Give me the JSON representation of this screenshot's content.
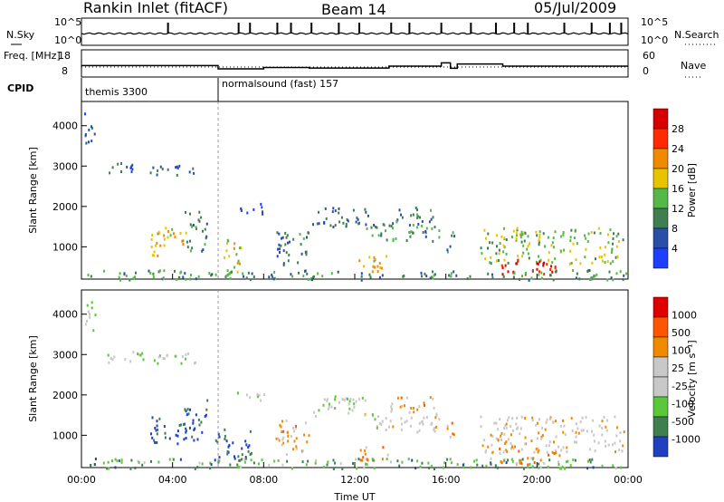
{
  "header": {
    "title": "Rankin Inlet (fitACF)",
    "beam": "Beam 14",
    "date": "05/Jul/2009"
  },
  "chart_data": [
    {
      "type": "line",
      "title": "",
      "left_label": "N.Sky",
      "right_label": "N.Search",
      "yticks_left": [
        "10^5",
        "10^0"
      ],
      "yticks_right": [
        "10^5",
        "10^0"
      ],
      "description_values": {
        "baseline_log_noise": 0.4,
        "spike_hours": [
          3.8,
          6.9,
          7.4,
          8.6,
          9.2,
          10.1,
          11.3,
          12.2,
          13.6,
          14.4,
          15.8,
          17.1,
          18.2,
          19.0,
          19.6,
          21.2,
          22.4,
          23.2,
          23.7
        ]
      }
    },
    {
      "type": "line",
      "left_label": "Freq. [MHz]",
      "right_label": "Nave",
      "yticks_left": [
        "18",
        "8"
      ],
      "yticks_right": [
        "60",
        "0"
      ],
      "freq_steps": [
        {
          "start": 0,
          "end": 6,
          "value": 12.2
        },
        {
          "start": 6,
          "end": 8,
          "value": 11.0
        },
        {
          "start": 8,
          "end": 10,
          "value": 11.5
        },
        {
          "start": 10,
          "end": 13.5,
          "value": 11.3
        },
        {
          "start": 13.5,
          "end": 15.8,
          "value": 12.0
        },
        {
          "start": 15.8,
          "end": 16.2,
          "value": 13.2
        },
        {
          "start": 16.2,
          "end": 16.5,
          "value": 11.2
        },
        {
          "start": 16.5,
          "end": 18.5,
          "value": 12.8
        },
        {
          "start": 18.5,
          "end": 24,
          "value": 12.0
        }
      ],
      "nave_value": 22
    },
    {
      "type": "table",
      "label": "CPID",
      "segments": [
        {
          "start_hour": 0,
          "text": "themis 3300"
        },
        {
          "start_hour": 6,
          "text": "normalsound (fast) 157"
        }
      ]
    },
    {
      "type": "heatmap",
      "ylabel": "Slant Range [km]",
      "yticks": [
        1000,
        2000,
        3000,
        4000
      ],
      "ylim": [
        200,
        4600
      ],
      "colorbar_label": "Power [dB]",
      "colorbar_ticks": [
        "28",
        "24",
        "20",
        "16",
        "12",
        "8",
        "4"
      ],
      "colors": [
        "#1f3fff",
        "#2a4fa8",
        "#3f7f4f",
        "#55b84a",
        "#e8c400",
        "#f08a00",
        "#ff2a00",
        "#d60000"
      ],
      "regions": [
        {
          "t0": 0.1,
          "t1": 0.6,
          "r0": 3600,
          "r1": 4400,
          "level": 0.15
        },
        {
          "t0": 1.0,
          "t1": 2.5,
          "r0": 2800,
          "r1": 3100,
          "level": 0.2
        },
        {
          "t0": 3.0,
          "t1": 5.0,
          "r0": 2800,
          "r1": 3100,
          "level": 0.25
        },
        {
          "t0": 3.0,
          "t1": 4.6,
          "r0": 800,
          "r1": 1500,
          "level": 0.6
        },
        {
          "t0": 4.5,
          "t1": 5.5,
          "r0": 900,
          "r1": 1900,
          "level": 0.3
        },
        {
          "t0": 6.2,
          "t1": 7.0,
          "r0": 400,
          "r1": 1200,
          "level": 0.55
        },
        {
          "t0": 6.8,
          "t1": 8.0,
          "r0": 1800,
          "r1": 2100,
          "level": 0.2
        },
        {
          "t0": 8.5,
          "t1": 10.0,
          "r0": 500,
          "r1": 1400,
          "level": 0.25
        },
        {
          "t0": 10.0,
          "t1": 12.6,
          "r0": 1500,
          "r1": 2000,
          "level": 0.22
        },
        {
          "t0": 12.0,
          "t1": 13.5,
          "r0": 400,
          "r1": 800,
          "level": 0.6
        },
        {
          "t0": 12.3,
          "t1": 15.7,
          "r0": 1100,
          "r1": 1600,
          "level": 0.35
        },
        {
          "t0": 13.5,
          "t1": 15.5,
          "r0": 1600,
          "r1": 2000,
          "level": 0.3
        },
        {
          "t0": 16.0,
          "t1": 16.4,
          "r0": 900,
          "r1": 1500,
          "level": 0.3
        },
        {
          "t0": 17.5,
          "t1": 23.8,
          "r0": 600,
          "r1": 1500,
          "level": 0.45
        },
        {
          "t0": 18.2,
          "t1": 21.0,
          "r0": 300,
          "r1": 700,
          "level": 0.9
        },
        {
          "t0": 0.0,
          "t1": 24.0,
          "r0": 200,
          "r1": 450,
          "level": 0.35
        }
      ]
    },
    {
      "type": "heatmap",
      "ylabel": "Slant Range [km]",
      "yticks": [
        1000,
        2000,
        3000,
        4000
      ],
      "ylim": [
        200,
        4600
      ],
      "xticks": [
        "00:00",
        "04:00",
        "08:00",
        "12:00",
        "16:00",
        "20:00",
        "00:00"
      ],
      "xlabel": "Time UT",
      "colorbar_label": "Velocity [m s⁻¹]",
      "colorbar_ticks": [
        "1000",
        "500",
        "100",
        "25",
        "-25",
        "-100",
        "-500",
        "-1000"
      ],
      "colors": [
        "#2040c0",
        "#3f7f4f",
        "#5ac83a",
        "#c8c8c8",
        "#c8c8c8",
        "#f08a00",
        "#ff5500",
        "#e00000"
      ],
      "regions": [
        {
          "t0": 0.1,
          "t1": 0.6,
          "r0": 3600,
          "r1": 4400,
          "level": 0.4
        },
        {
          "t0": 1.0,
          "t1": 5.0,
          "r0": 2800,
          "r1": 3100,
          "level": 0.42
        },
        {
          "t0": 3.0,
          "t1": 4.6,
          "r0": 800,
          "r1": 1500,
          "level": 0.05
        },
        {
          "t0": 4.5,
          "t1": 5.5,
          "r0": 900,
          "r1": 1900,
          "level": 0.08
        },
        {
          "t0": 5.8,
          "t1": 7.5,
          "r0": 400,
          "r1": 1200,
          "level": 0.1
        },
        {
          "t0": 6.8,
          "t1": 8.0,
          "r0": 1800,
          "r1": 2100,
          "level": 0.45
        },
        {
          "t0": 8.5,
          "t1": 10.0,
          "r0": 500,
          "r1": 1400,
          "level": 0.62
        },
        {
          "t0": 10.0,
          "t1": 12.6,
          "r0": 1500,
          "r1": 2000,
          "level": 0.45
        },
        {
          "t0": 12.0,
          "t1": 13.5,
          "r0": 400,
          "r1": 800,
          "level": 0.65
        },
        {
          "t0": 12.3,
          "t1": 15.7,
          "r0": 1100,
          "r1": 1600,
          "level": 0.5
        },
        {
          "t0": 13.5,
          "t1": 15.5,
          "r0": 1600,
          "r1": 2000,
          "level": 0.62
        },
        {
          "t0": 16.0,
          "t1": 16.4,
          "r0": 900,
          "r1": 1500,
          "level": 0.64
        },
        {
          "t0": 17.5,
          "t1": 23.8,
          "r0": 600,
          "r1": 1500,
          "level": 0.55
        },
        {
          "t0": 18.2,
          "t1": 21.0,
          "r0": 300,
          "r1": 700,
          "level": 0.7
        },
        {
          "t0": 0.0,
          "t1": 24.0,
          "r0": 200,
          "r1": 450,
          "level": 0.25
        }
      ]
    }
  ]
}
